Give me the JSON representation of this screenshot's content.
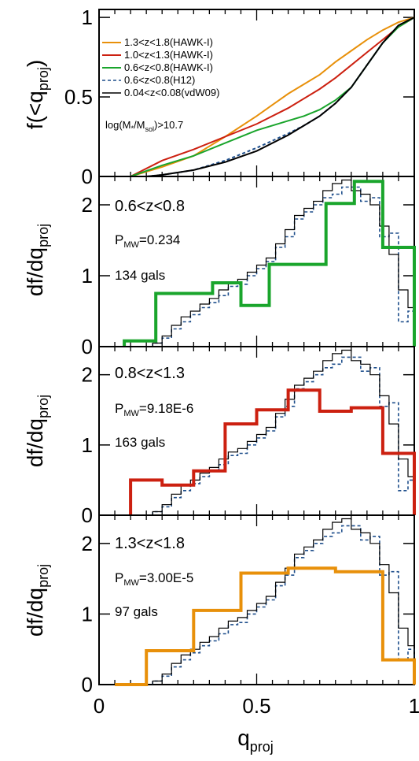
{
  "chart_data": [
    {
      "type": "line",
      "panel": "cumulative",
      "ylabel": "f(<q",
      "ylabel_sub": "proj",
      "ylabel_close": ")",
      "xlim": [
        0,
        1
      ],
      "ylim": [
        0,
        1.05
      ],
      "yticks": [
        "0",
        "0.5",
        "1"
      ],
      "annotation": {
        "pre": "log(M",
        "sub1": "*",
        "mid": "/M",
        "sub2": "sol",
        "post": ")>10.7"
      },
      "legend_position": "top-left",
      "series": [
        {
          "name": "1.3<z<1.8(HAWK-I)",
          "color": "#e8900a",
          "dash": false,
          "x": [
            0.1,
            0.2,
            0.3,
            0.4,
            0.5,
            0.55,
            0.6,
            0.7,
            0.75,
            0.8,
            0.85,
            0.9,
            0.95,
            1.0
          ],
          "y": [
            0.0,
            0.06,
            0.13,
            0.25,
            0.38,
            0.45,
            0.52,
            0.64,
            0.72,
            0.79,
            0.86,
            0.92,
            0.97,
            1.0
          ]
        },
        {
          "name": "1.0<z<1.3(HAWK-I)",
          "color": "#cc2010",
          "dash": false,
          "x": [
            0.1,
            0.2,
            0.3,
            0.4,
            0.5,
            0.6,
            0.7,
            0.75,
            0.8,
            0.85,
            0.9,
            0.95,
            1.0
          ],
          "y": [
            0.0,
            0.1,
            0.17,
            0.25,
            0.33,
            0.43,
            0.55,
            0.62,
            0.7,
            0.78,
            0.86,
            0.94,
            1.0
          ]
        },
        {
          "name": "0.6<z<0.8(HAWK-I)",
          "color": "#1aa52c",
          "dash": false,
          "x": [
            0.1,
            0.2,
            0.3,
            0.4,
            0.5,
            0.6,
            0.65,
            0.7,
            0.75,
            0.8,
            0.85,
            0.9,
            0.95,
            1.0
          ],
          "y": [
            0.0,
            0.07,
            0.13,
            0.21,
            0.29,
            0.35,
            0.38,
            0.42,
            0.48,
            0.56,
            0.7,
            0.84,
            0.94,
            1.0
          ]
        },
        {
          "name": "0.6<z<0.8(H12)",
          "color": "#1f4f8c",
          "dash": true,
          "x": [
            0.15,
            0.2,
            0.3,
            0.4,
            0.5,
            0.6,
            0.65,
            0.7,
            0.75,
            0.8,
            0.85,
            0.9,
            0.95,
            1.0
          ],
          "y": [
            0.0,
            0.01,
            0.04,
            0.1,
            0.18,
            0.27,
            0.32,
            0.38,
            0.46,
            0.56,
            0.7,
            0.84,
            0.95,
            1.0
          ]
        },
        {
          "name": "0.04<z<0.08(vdW09)",
          "color": "#000000",
          "dash": false,
          "x": [
            0.15,
            0.2,
            0.3,
            0.4,
            0.5,
            0.6,
            0.65,
            0.7,
            0.75,
            0.8,
            0.85,
            0.9,
            0.95,
            1.0
          ],
          "y": [
            0.0,
            0.01,
            0.04,
            0.09,
            0.16,
            0.26,
            0.32,
            0.38,
            0.46,
            0.56,
            0.7,
            0.84,
            0.95,
            1.0
          ]
        }
      ]
    },
    {
      "type": "histogram",
      "panel": "0.6<z<0.8",
      "ylabel": "df/dq",
      "ylabel_sub": "proj",
      "xlim": [
        0,
        1
      ],
      "ylim": [
        0,
        2.4
      ],
      "yticks": [
        "0",
        "1",
        "2"
      ],
      "annotations": {
        "label": "0.6<z<0.8",
        "p_pre": "P",
        "p_sub": "MW",
        "p_post": "=0.234",
        "count": "134 gals"
      },
      "series": [
        {
          "name": "0.6<z<0.8(HAWK-I)",
          "color": "#1aa52c",
          "edges": [
            0.08,
            0.18,
            0.36,
            0.45,
            0.54,
            0.72,
            0.81,
            0.9,
            1.0
          ],
          "values": [
            0.08,
            0.75,
            0.9,
            0.58,
            1.16,
            2.02,
            2.33,
            1.4
          ]
        }
      ]
    },
    {
      "type": "histogram",
      "panel": "0.8<z<1.3",
      "ylabel": "df/dq",
      "ylabel_sub": "proj",
      "xlim": [
        0,
        1
      ],
      "ylim": [
        0,
        2.4
      ],
      "yticks": [
        "0",
        "1",
        "2"
      ],
      "annotations": {
        "label": "0.8<z<1.3",
        "p_pre": "P",
        "p_sub": "MW",
        "p_post": "=9.18E-6",
        "count": "163 gals"
      },
      "series": [
        {
          "name": "1.0<z<1.3(HAWK-I)",
          "color": "#cc2010",
          "edges": [
            0.1,
            0.2,
            0.3,
            0.4,
            0.5,
            0.6,
            0.7,
            0.8,
            0.9,
            1.0
          ],
          "values": [
            0.5,
            0.43,
            0.63,
            1.3,
            1.5,
            1.78,
            1.48,
            1.53,
            0.88
          ]
        }
      ]
    },
    {
      "type": "histogram",
      "panel": "1.3<z<1.8",
      "ylabel": "df/dq",
      "ylabel_sub": "proj",
      "xlim": [
        0,
        1
      ],
      "ylim": [
        0,
        2.4
      ],
      "yticks": [
        "0",
        "1",
        "2"
      ],
      "xticks": [
        "0",
        "0.5",
        "1"
      ],
      "xlabel": "q",
      "xlabel_sub": "proj",
      "annotations": {
        "label": "1.3<z<1.8",
        "p_pre": "P",
        "p_sub": "MW",
        "p_post": "=3.00E-5",
        "count": "97 gals"
      },
      "series": [
        {
          "name": "1.3<z<1.8(HAWK-I)",
          "color": "#e8900a",
          "edges": [
            0.05,
            0.15,
            0.3,
            0.45,
            0.6,
            0.75,
            0.9,
            1.0
          ],
          "values": [
            0.0,
            0.48,
            1.05,
            1.58,
            1.65,
            1.6,
            0.35
          ]
        }
      ]
    }
  ],
  "reference": {
    "edges": [
      0.17,
      0.2,
      0.23,
      0.26,
      0.29,
      0.32,
      0.35,
      0.38,
      0.41,
      0.44,
      0.47,
      0.5,
      0.53,
      0.56,
      0.59,
      0.62,
      0.65,
      0.68,
      0.71,
      0.74,
      0.77,
      0.8,
      0.83,
      0.86,
      0.89,
      0.92,
      0.95,
      0.98,
      1.0
    ],
    "vdW09": [
      0.05,
      0.15,
      0.3,
      0.42,
      0.5,
      0.6,
      0.68,
      0.8,
      0.9,
      0.95,
      1.05,
      1.15,
      1.25,
      1.45,
      1.65,
      1.85,
      1.95,
      2.05,
      2.2,
      2.3,
      2.35,
      2.2,
      2.15,
      2.0,
      1.7,
      1.3,
      0.8,
      0.55
    ],
    "H12": [
      0.05,
      0.12,
      0.25,
      0.35,
      0.45,
      0.55,
      0.62,
      0.72,
      0.85,
      0.88,
      1.0,
      1.1,
      1.2,
      1.4,
      1.55,
      1.8,
      1.9,
      2.0,
      2.1,
      2.15,
      2.25,
      2.25,
      2.05,
      2.1,
      1.55,
      1.6,
      0.35,
      0.5
    ]
  }
}
